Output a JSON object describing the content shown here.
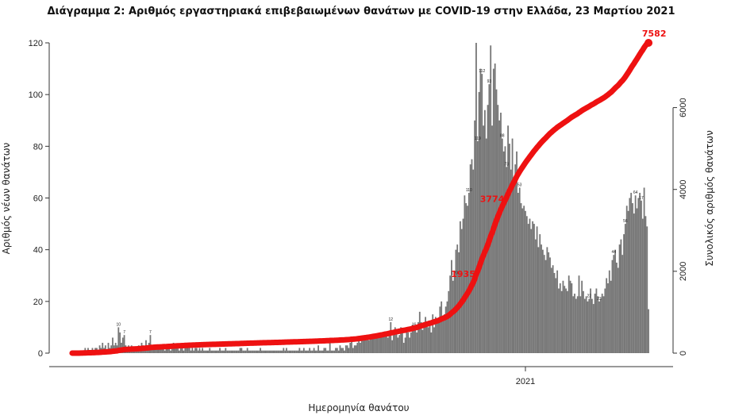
{
  "chart_data": {
    "type": "bar",
    "title": "Διάγραμμα 2: Αριθμός εργαστηριακά επιβεβαιωμένων θανάτων με COVID-19 στην Ελλάδα, 23 Μαρτίου 2021",
    "xlabel": "Ημερομηνία θανάτου",
    "ylabel": "Αριθμός νέων θανάτων",
    "y2label": "Συνολικός αριθμός θανάτων",
    "ylim": [
      0,
      120
    ],
    "y2lim": [
      0,
      7582
    ],
    "yticks": [
      "0",
      "20",
      "40",
      "60",
      "80",
      "100",
      "120"
    ],
    "y2ticks": [
      "0",
      "2000",
      "4000",
      "6000"
    ],
    "x_tick_label": "2021",
    "series": [
      {
        "type": "bar",
        "color": "#777777",
        "values": [
          1,
          0,
          0,
          0,
          0,
          0,
          1,
          1,
          1,
          2,
          1,
          2,
          1,
          1,
          2,
          0,
          2,
          2,
          1,
          3,
          2,
          4,
          2,
          3,
          1,
          4,
          2,
          3,
          6,
          3,
          4,
          3,
          10,
          8,
          4,
          6,
          7,
          3,
          2,
          3,
          2,
          3,
          2,
          1,
          2,
          2,
          3,
          2,
          4,
          3,
          2,
          5,
          3,
          4,
          7,
          3,
          2,
          3,
          2,
          2,
          2,
          2,
          2,
          3,
          1,
          2,
          3,
          2,
          1,
          3,
          4,
          2,
          3,
          2,
          1,
          2,
          2,
          1,
          3,
          2,
          2,
          2,
          1,
          2,
          1,
          2,
          2,
          1,
          2,
          1,
          2,
          1,
          1,
          1,
          1,
          2,
          1,
          1,
          1,
          1,
          1,
          1,
          2,
          1,
          1,
          1,
          2,
          1,
          1,
          1,
          1,
          1,
          1,
          1,
          1,
          1,
          2,
          2,
          1,
          1,
          1,
          2,
          1,
          1,
          1,
          1,
          1,
          1,
          1,
          1,
          2,
          1,
          1,
          1,
          1,
          1,
          1,
          1,
          1,
          1,
          1,
          1,
          1,
          1,
          1,
          1,
          2,
          1,
          2,
          1,
          1,
          1,
          1,
          1,
          1,
          1,
          1,
          2,
          1,
          1,
          2,
          1,
          1,
          1,
          2,
          1,
          1,
          2,
          1,
          1,
          3,
          1,
          1,
          1,
          2,
          2,
          1,
          1,
          4,
          1,
          1,
          1,
          2,
          2,
          1,
          3,
          2,
          2,
          1,
          3,
          3,
          2,
          4,
          5,
          2,
          3,
          3,
          4,
          6,
          4,
          5,
          6,
          5,
          5,
          6,
          5,
          6,
          7,
          6,
          6,
          7,
          6,
          7,
          8,
          7,
          8,
          8,
          7,
          6,
          8,
          12,
          5,
          8,
          10,
          8,
          6,
          7,
          10,
          8,
          4,
          6,
          10,
          8,
          6,
          8,
          11,
          10,
          9,
          8,
          12,
          16,
          12,
          9,
          12,
          14,
          12,
          10,
          12,
          8,
          15,
          10,
          14,
          12,
          13,
          18,
          20,
          14,
          15,
          18,
          20,
          24,
          30,
          36,
          28,
          30,
          40,
          42,
          39,
          51,
          48,
          52,
          61,
          58,
          57,
          62,
          73,
          75,
          71,
          90,
          120,
          82,
          101,
          110,
          108,
          88,
          94,
          83,
          96,
          104,
          119,
          88,
          110,
          112,
          102,
          96,
          90,
          93,
          83,
          78,
          80,
          72,
          88,
          81,
          71,
          83,
          68,
          73,
          78,
          62,
          64,
          58,
          56,
          57,
          55,
          53,
          50,
          52,
          48,
          51,
          50,
          44,
          49,
          41,
          46,
          42,
          40,
          38,
          36,
          41,
          39,
          37,
          33,
          34,
          31,
          29,
          32,
          25,
          27,
          24,
          28,
          26,
          25,
          24,
          30,
          28,
          27,
          22,
          23,
          21,
          22,
          30,
          22,
          28,
          24,
          21,
          22,
          20,
          21,
          25,
          21,
          19,
          23,
          25,
          22,
          20,
          21,
          23,
          22,
          25,
          29,
          27,
          32,
          28,
          36,
          38,
          40,
          35,
          33,
          42,
          44,
          38,
          46,
          50,
          57,
          55,
          60,
          62,
          58,
          54,
          61,
          56,
          60,
          62,
          59,
          52,
          64,
          53,
          49,
          17
        ]
      },
      {
        "type": "line",
        "color": "#ee1111",
        "cumulative": true,
        "start_date": "2020-03-12",
        "values": "cumulative sum of daily deaths, scaled so final equals 7582"
      }
    ],
    "bar_labels": [
      {
        "index": 32,
        "text": "10"
      },
      {
        "index": 36,
        "text": "7"
      },
      {
        "index": 54,
        "text": "7"
      },
      {
        "index": 220,
        "text": "12"
      },
      {
        "index": 236,
        "text": "16"
      },
      {
        "index": 264,
        "text": "120"
      },
      {
        "index": 274,
        "text": "110"
      },
      {
        "index": 280,
        "text": "119"
      },
      {
        "index": 283,
        "text": "112"
      },
      {
        "index": 288,
        "text": "93"
      },
      {
        "index": 297,
        "text": "88"
      },
      {
        "index": 300,
        "text": "73"
      },
      {
        "index": 309,
        "text": "53"
      },
      {
        "index": 357,
        "text": "22"
      },
      {
        "index": 364,
        "text": "23"
      },
      {
        "index": 374,
        "text": "44"
      },
      {
        "index": 382,
        "text": "56"
      },
      {
        "index": 389,
        "text": "64"
      },
      {
        "index": 393,
        "text": "17"
      }
    ],
    "cumulative_labels": [
      {
        "text": "1935",
        "frac": 0.2552
      },
      {
        "text": "3774",
        "frac": 0.4978
      },
      {
        "text": "7582",
        "frac": 1.0
      }
    ]
  }
}
